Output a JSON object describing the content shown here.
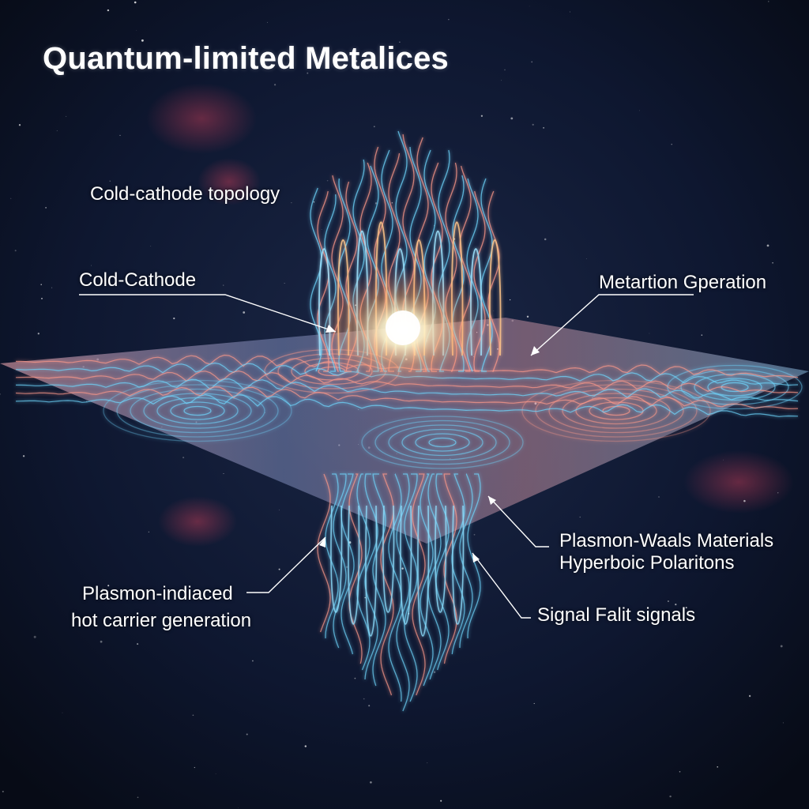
{
  "title": "Quantum-limited Metalices",
  "labels": {
    "cold_cathode_topology": "Cold-cathode topology",
    "cold_cathode": "Cold-Cathode",
    "metartion_gperation": "Metartion Gperation",
    "plasmon_waals_line1": "Plasmon-Waals Materials",
    "plasmon_waals_line2": "Hyperboic Polaritons",
    "plasmon_indiaced_line1": "Plasmon-indiaced",
    "plasmon_indiaced_line2": "hot carrier generation",
    "signal_falit": "Signal Falit signals"
  },
  "colors": {
    "background": "#0a1020",
    "warm_wave": "#ff9a8a",
    "cool_wave": "#6fd8ff",
    "core_glow": "#fff6dc",
    "leader_line": "#ffffff"
  }
}
